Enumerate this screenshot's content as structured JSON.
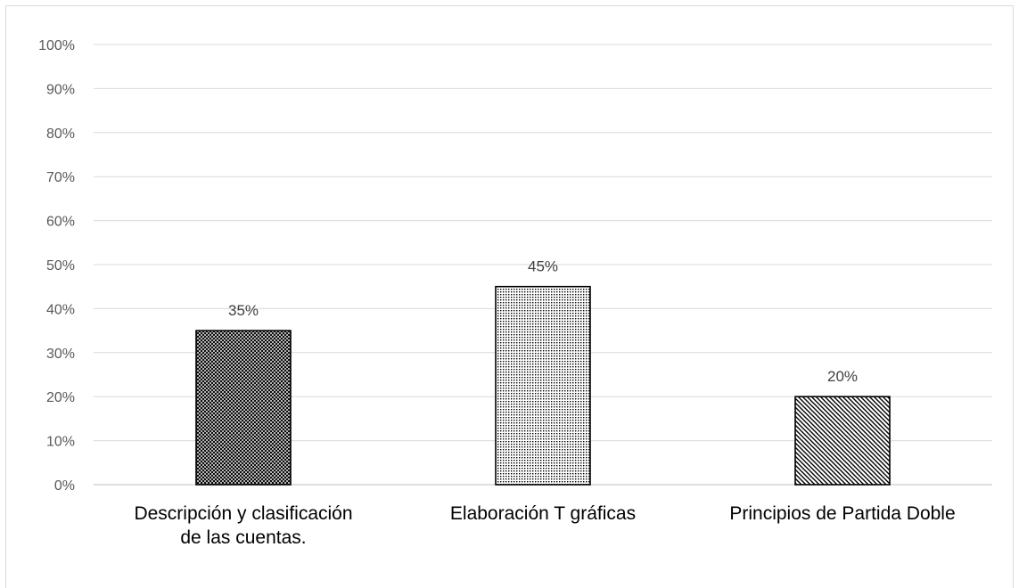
{
  "chart_data": {
    "type": "bar",
    "title": "",
    "xlabel": "",
    "ylabel": "",
    "ylim": [
      0,
      100
    ],
    "y_tick_step": 10,
    "y_tick_suffix": "%",
    "grid": true,
    "categories": [
      [
        "Descripción y clasificación",
        "de las cuentas."
      ],
      [
        "Elaboración T gráficas"
      ],
      [
        "Principios de Partida Doble"
      ]
    ],
    "values": [
      35,
      45,
      20
    ],
    "data_labels": [
      "35%",
      "45%",
      "20%"
    ],
    "bar_patterns": [
      "crosshatch",
      "dots",
      "diagonal"
    ],
    "bar_fill_color": "#ffffff",
    "bar_pattern_color": "#000000"
  }
}
